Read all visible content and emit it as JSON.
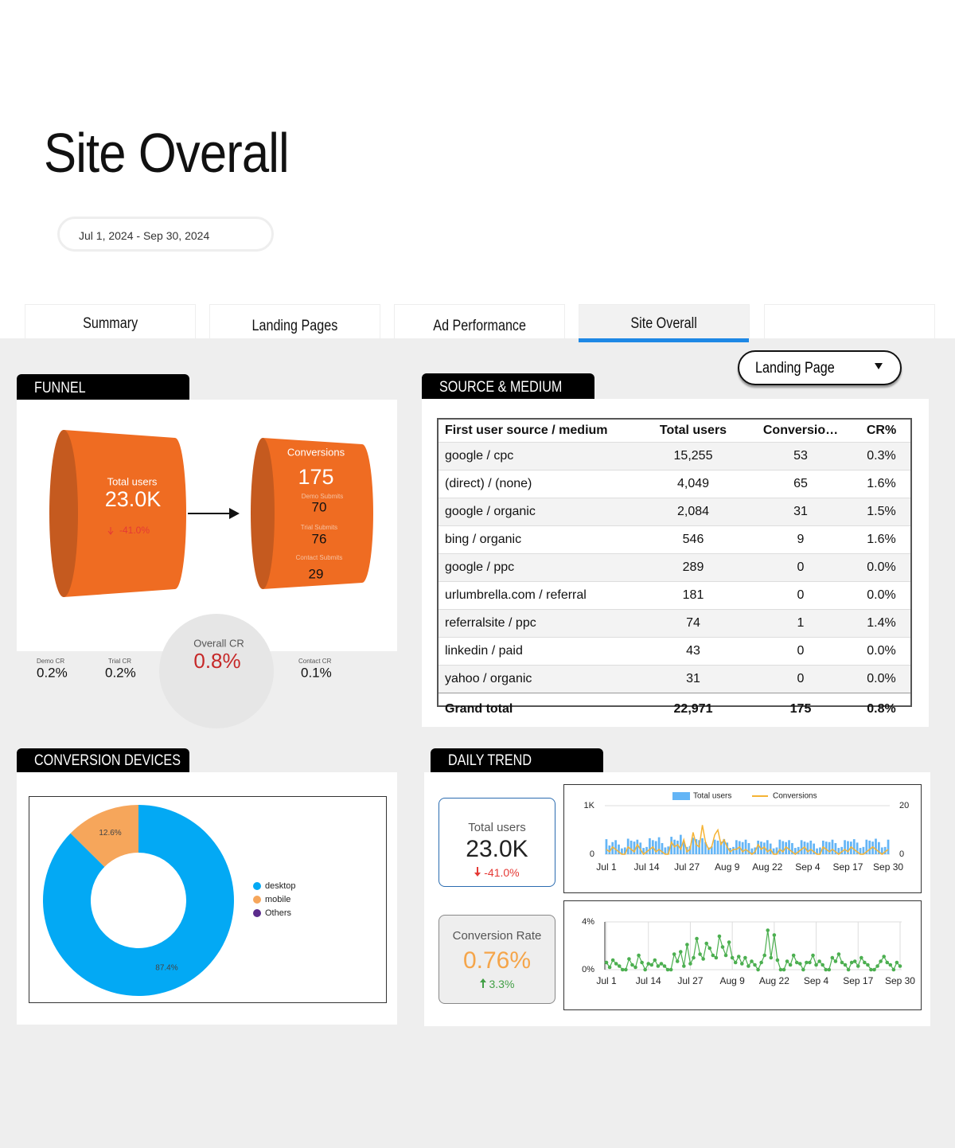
{
  "header": {
    "title": "Site Overall",
    "date_range": "Jul 1, 2024 - Sep 30, 2024"
  },
  "tabs": [
    "Summary",
    "Landing Pages",
    "Ad Performance",
    "Site Overall"
  ],
  "filter": "Landing Page",
  "funnel": {
    "title": "FUNNEL",
    "total_users_label": "Total users",
    "total_users": "23.0K",
    "total_users_change": "-41.0%",
    "conversions_label": "Conversions",
    "conversions": 175,
    "steps": [
      {
        "label": "Demo Submits",
        "value": 70
      },
      {
        "label": "Trial Submits",
        "value": 76
      },
      {
        "label": "Contact Submits",
        "value": 29
      }
    ],
    "overall_cr_label": "Overall CR",
    "overall_cr": "0.8%",
    "rates": [
      {
        "label": "Demo CR",
        "value": "0.2%"
      },
      {
        "label": "Trial CR",
        "value": "0.2%"
      },
      {
        "label": "Contact CR",
        "value": "0.1%"
      }
    ]
  },
  "source_medium": {
    "title": "SOURCE & MEDIUM",
    "columns": [
      "First user source / medium",
      "Total users",
      "Conversio…",
      "CR%"
    ],
    "rows": [
      [
        "google / cpc",
        "15,255",
        "53",
        "0.3%"
      ],
      [
        "(direct) / (none)",
        "4,049",
        "65",
        "1.6%"
      ],
      [
        "google / organic",
        "2,084",
        "31",
        "1.5%"
      ],
      [
        "bing / organic",
        "546",
        "9",
        "1.6%"
      ],
      [
        "google / ppc",
        "289",
        "0",
        "0.0%"
      ],
      [
        "urlumbrella.com / referral",
        "181",
        "0",
        "0.0%"
      ],
      [
        "referralsite / ppc",
        "74",
        "1",
        "1.4%"
      ],
      [
        "linkedin / paid",
        "43",
        "0",
        "0.0%"
      ],
      [
        "yahoo / organic",
        "31",
        "0",
        "0.0%"
      ]
    ],
    "total": [
      "Grand total",
      "22,971",
      "175",
      "0.8%"
    ]
  },
  "devices_title": "CONVERSION DEVICES",
  "trend_title": "DAILY TREND",
  "scorecards": [
    {
      "label": "Total users",
      "value": "23.0K",
      "change": "-41.0%"
    },
    {
      "label": "Conversion Rate",
      "value": "0.76%",
      "change": "3.3%"
    }
  ],
  "chart_data": [
    {
      "type": "donut",
      "categories": [
        "desktop",
        "mobile",
        "Others"
      ],
      "values": [
        87.4,
        12.6,
        0
      ],
      "value_labels": [
        "87.4%",
        "12.6%",
        null
      ],
      "colors": [
        "#03a9f4",
        "#f6a65b",
        "#5b2b8c"
      ],
      "legend": "right"
    },
    {
      "type": "combo",
      "categories": [
        "Jul 1",
        null,
        null,
        null,
        null,
        null,
        null,
        null,
        null,
        null,
        null,
        null,
        null,
        "Jul 14",
        null,
        null,
        null,
        null,
        null,
        null,
        null,
        null,
        null,
        null,
        null,
        null,
        "Jul 27",
        null,
        null,
        null,
        null,
        null,
        null,
        null,
        null,
        null,
        null,
        null,
        null,
        "Aug 9",
        null,
        null,
        null,
        null,
        null,
        null,
        null,
        null,
        null,
        null,
        null,
        null,
        "Aug 22",
        null,
        null,
        null,
        null,
        null,
        null,
        null,
        null,
        null,
        null,
        null,
        null,
        "Sep 4",
        null,
        null,
        null,
        null,
        null,
        null,
        null,
        null,
        null,
        null,
        null,
        null,
        "Sep 17",
        null,
        null,
        null,
        null,
        null,
        null,
        null,
        null,
        null,
        null,
        null,
        null,
        "Sep 30"
      ],
      "series": [
        {
          "name": "Total users",
          "type": "bar",
          "color": "#64b5f6",
          "values": [
            310,
            180,
            250,
            290,
            200,
            120,
            140,
            320,
            280,
            260,
            300,
            240,
            130,
            150,
            330,
            290,
            270,
            350,
            230,
            140,
            160,
            360,
            300,
            280,
            400,
            260,
            150,
            170,
            340,
            310,
            290,
            330,
            250,
            140,
            160,
            300,
            280,
            260,
            310,
            240,
            130,
            150,
            290,
            270,
            250,
            300,
            230,
            120,
            140,
            280,
            260,
            240,
            290,
            220,
            120,
            140,
            300,
            270,
            250,
            290,
            230,
            130,
            150,
            290,
            260,
            240,
            280,
            220,
            120,
            140,
            280,
            260,
            250,
            300,
            230,
            130,
            150,
            290,
            270,
            260,
            310,
            240,
            130,
            150,
            300,
            280,
            260,
            320,
            250,
            140,
            150,
            300
          ]
        },
        {
          "name": "Conversions",
          "type": "line",
          "axis": "y2",
          "color": "#f5b335",
          "values": [
            2,
            1,
            3,
            2,
            1,
            0,
            0,
            3,
            2,
            1,
            4,
            2,
            0,
            1,
            2,
            3,
            1,
            2,
            1,
            0,
            0,
            5,
            3,
            4,
            2,
            6,
            1,
            2,
            9,
            4,
            3,
            12,
            5,
            2,
            3,
            8,
            10,
            4,
            6,
            3,
            1,
            2,
            2,
            3,
            1,
            2,
            1,
            0,
            1,
            4,
            2,
            3,
            1,
            2,
            0,
            0,
            2,
            1,
            3,
            2,
            1,
            0,
            1,
            2,
            3,
            1,
            2,
            1,
            0,
            0,
            3,
            2,
            1,
            2,
            1,
            0,
            1,
            2,
            1,
            3,
            2,
            1,
            0,
            0,
            1,
            2,
            3,
            2,
            1,
            0,
            1,
            2
          ]
        }
      ],
      "ylim": [
        0,
        1000
      ],
      "yticks": [
        0,
        {
          "value": 1000,
          "label": "1K"
        }
      ],
      "y2lim": [
        0,
        20
      ],
      "y2ticks": [
        0,
        20
      ],
      "legend": "top",
      "grid": true
    },
    {
      "type": "line",
      "categories": [
        "Jul 1",
        null,
        null,
        null,
        null,
        null,
        null,
        null,
        null,
        null,
        null,
        null,
        null,
        "Jul 14",
        null,
        null,
        null,
        null,
        null,
        null,
        null,
        null,
        null,
        null,
        null,
        null,
        "Jul 27",
        null,
        null,
        null,
        null,
        null,
        null,
        null,
        null,
        null,
        null,
        null,
        null,
        "Aug 9",
        null,
        null,
        null,
        null,
        null,
        null,
        null,
        null,
        null,
        null,
        null,
        null,
        "Aug 22",
        null,
        null,
        null,
        null,
        null,
        null,
        null,
        null,
        null,
        null,
        null,
        null,
        "Sep 4",
        null,
        null,
        null,
        null,
        null,
        null,
        null,
        null,
        null,
        null,
        null,
        null,
        "Sep 17",
        null,
        null,
        null,
        null,
        null,
        null,
        null,
        null,
        null,
        null,
        null,
        null,
        "Sep 30"
      ],
      "values": [
        0.6,
        0.2,
        0.8,
        0.5,
        0.3,
        0,
        0,
        0.9,
        0.4,
        0.2,
        1.2,
        0.6,
        0,
        0.5,
        0.4,
        0.8,
        0.3,
        0.5,
        0.3,
        0,
        0,
        1.3,
        0.7,
        1.5,
        0.3,
        2.1,
        0.5,
        1.0,
        2.6,
        1.3,
        0.9,
        2.2,
        1.8,
        1.2,
        1.0,
        2.8,
        1.9,
        1.2,
        2.3,
        1.0,
        0.6,
        1.1,
        0.5,
        1.0,
        0.3,
        0.7,
        0.4,
        0,
        0.6,
        1.2,
        3.3,
        1.0,
        2.9,
        0.8,
        0,
        0,
        0.7,
        0.4,
        1.2,
        0.6,
        0.5,
        0,
        0.6,
        0.6,
        1.2,
        0.4,
        0.7,
        0.4,
        0,
        0,
        1.0,
        0.7,
        1.3,
        0.6,
        0.4,
        0,
        0.6,
        0.7,
        0.3,
        1.0,
        0.6,
        0.4,
        0,
        0,
        0.3,
        0.7,
        1.1,
        0.6,
        0.4,
        0,
        0.6,
        0.3
      ],
      "color": "#4caf50",
      "markers": true,
      "ylim": [
        0,
        4
      ],
      "yticks": [
        {
          "value": 0,
          "label": "0%"
        },
        {
          "value": 4,
          "label": "4%"
        }
      ],
      "grid": true
    }
  ]
}
